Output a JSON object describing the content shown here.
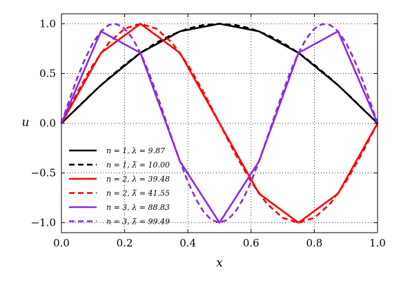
{
  "chart_data": {
    "type": "line",
    "xlabel": "x",
    "ylabel": "u",
    "xlim": [
      0.0,
      1.0
    ],
    "ylim": [
      -1.1,
      1.1
    ],
    "x_ticks": [
      "0.0",
      "0.2",
      "0.4",
      "0.6",
      "0.8",
      "1.0"
    ],
    "y_ticks": [
      "1.0",
      "0.5",
      "0.0",
      "−0.5",
      "−1.0"
    ],
    "grid": true,
    "legend_position": "lower-left",
    "series": [
      {
        "name": "n = 1,  λ = 9.87",
        "color": "#000000",
        "style": "solid",
        "x": [
          0,
          0.125,
          0.25,
          0.375,
          0.5,
          0.625,
          0.75,
          0.875,
          1.0
        ],
        "y": [
          0,
          0.383,
          0.707,
          0.924,
          1.0,
          0.924,
          0.707,
          0.383,
          0
        ]
      },
      {
        "name": "n = 1,  λ̃ = 10.00",
        "color": "#000000",
        "style": "dashed",
        "x": [
          0,
          0.05,
          0.1,
          0.15,
          0.2,
          0.25,
          0.3,
          0.35,
          0.4,
          0.45,
          0.5,
          0.55,
          0.6,
          0.65,
          0.7,
          0.75,
          0.8,
          0.85,
          0.9,
          0.95,
          1.0
        ],
        "y": [
          0,
          0.156,
          0.309,
          0.454,
          0.588,
          0.707,
          0.809,
          0.891,
          0.951,
          0.988,
          1.0,
          0.988,
          0.951,
          0.891,
          0.809,
          0.707,
          0.588,
          0.454,
          0.309,
          0.156,
          0
        ]
      },
      {
        "name": "n = 2,  λ = 39.48",
        "color": "#ff0000",
        "style": "solid",
        "x": [
          0,
          0.125,
          0.25,
          0.375,
          0.5,
          0.625,
          0.75,
          0.875,
          1.0
        ],
        "y": [
          0,
          0.707,
          1.0,
          0.707,
          0,
          -0.707,
          -1.0,
          -0.707,
          0
        ]
      },
      {
        "name": "n = 2,  λ̃ = 41.55",
        "color": "#ff0000",
        "style": "dashed",
        "x": [
          0,
          0.05,
          0.1,
          0.15,
          0.2,
          0.25,
          0.3,
          0.35,
          0.4,
          0.45,
          0.5,
          0.55,
          0.6,
          0.65,
          0.7,
          0.75,
          0.8,
          0.85,
          0.9,
          0.95,
          1.0
        ],
        "y": [
          0,
          0.309,
          0.588,
          0.809,
          0.951,
          1.0,
          0.951,
          0.809,
          0.588,
          0.309,
          0,
          -0.309,
          -0.588,
          -0.809,
          -0.951,
          -1.0,
          -0.951,
          -0.809,
          -0.588,
          -0.309,
          0
        ]
      },
      {
        "name": "n = 3,  λ = 88.83",
        "color": "#8a2be2",
        "style": "solid",
        "x": [
          0,
          0.125,
          0.25,
          0.375,
          0.5,
          0.625,
          0.75,
          0.875,
          1.0
        ],
        "y": [
          0,
          0.924,
          0.707,
          -0.383,
          -1.0,
          -0.383,
          0.707,
          0.924,
          0
        ]
      },
      {
        "name": "n = 3,  λ̃ = 99.49",
        "color": "#8a2be2",
        "style": "dashed",
        "x": [
          0,
          0.025,
          0.05,
          0.075,
          0.1,
          0.125,
          0.15,
          0.175,
          0.2,
          0.225,
          0.25,
          0.275,
          0.3,
          0.325,
          0.35,
          0.375,
          0.4,
          0.425,
          0.45,
          0.475,
          0.5,
          0.525,
          0.55,
          0.575,
          0.6,
          0.625,
          0.65,
          0.675,
          0.7,
          0.725,
          0.75,
          0.775,
          0.8,
          0.825,
          0.85,
          0.875,
          0.9,
          0.925,
          0.95,
          0.975,
          1.0
        ],
        "y": [
          0,
          0.233,
          0.454,
          0.649,
          0.809,
          0.924,
          0.988,
          0.997,
          0.951,
          0.853,
          0.707,
          0.522,
          0.309,
          0.078,
          -0.156,
          -0.383,
          -0.588,
          -0.76,
          -0.891,
          -0.972,
          -1.0,
          -0.972,
          -0.891,
          -0.76,
          -0.588,
          -0.383,
          -0.156,
          0.078,
          0.309,
          0.522,
          0.707,
          0.853,
          0.951,
          0.997,
          0.988,
          0.924,
          0.809,
          0.649,
          0.454,
          0.233,
          0
        ]
      }
    ]
  }
}
